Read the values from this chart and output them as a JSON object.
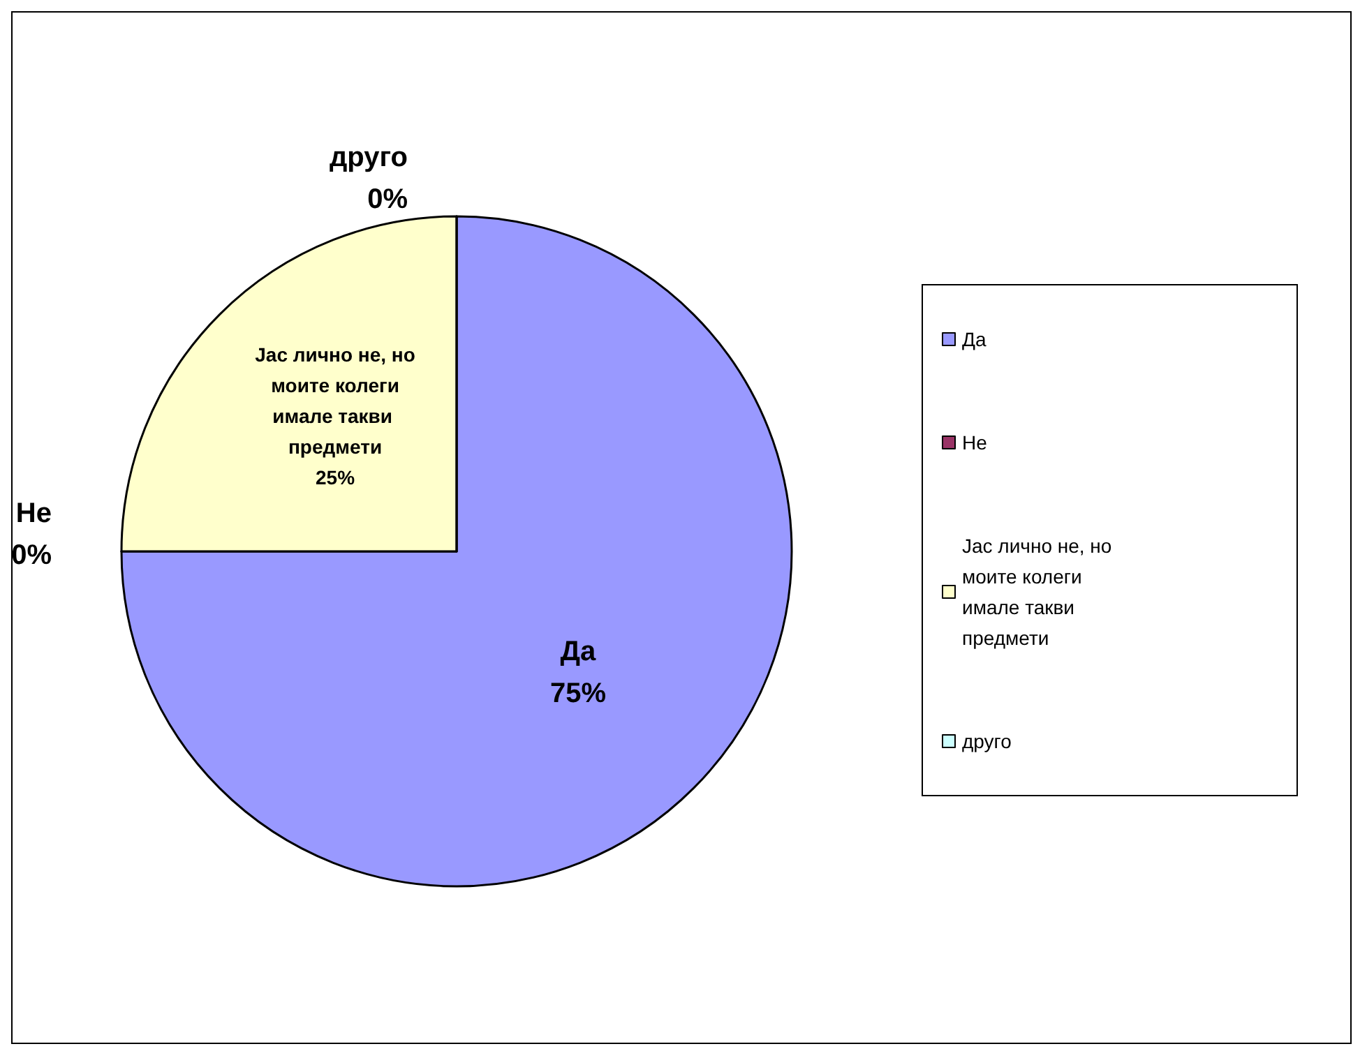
{
  "chart_data": {
    "type": "pie",
    "categories": [
      "Да",
      "Не",
      "Јас лично не, но моите колеги имале такви предмети",
      "друго"
    ],
    "values": [
      75,
      0,
      25,
      0
    ],
    "colors": [
      "#9999ff",
      "#993366",
      "#ffffcc",
      "#ccffff"
    ],
    "value_labels": [
      "75%",
      "0%",
      "25%",
      "0%"
    ],
    "legend": "right"
  }
}
